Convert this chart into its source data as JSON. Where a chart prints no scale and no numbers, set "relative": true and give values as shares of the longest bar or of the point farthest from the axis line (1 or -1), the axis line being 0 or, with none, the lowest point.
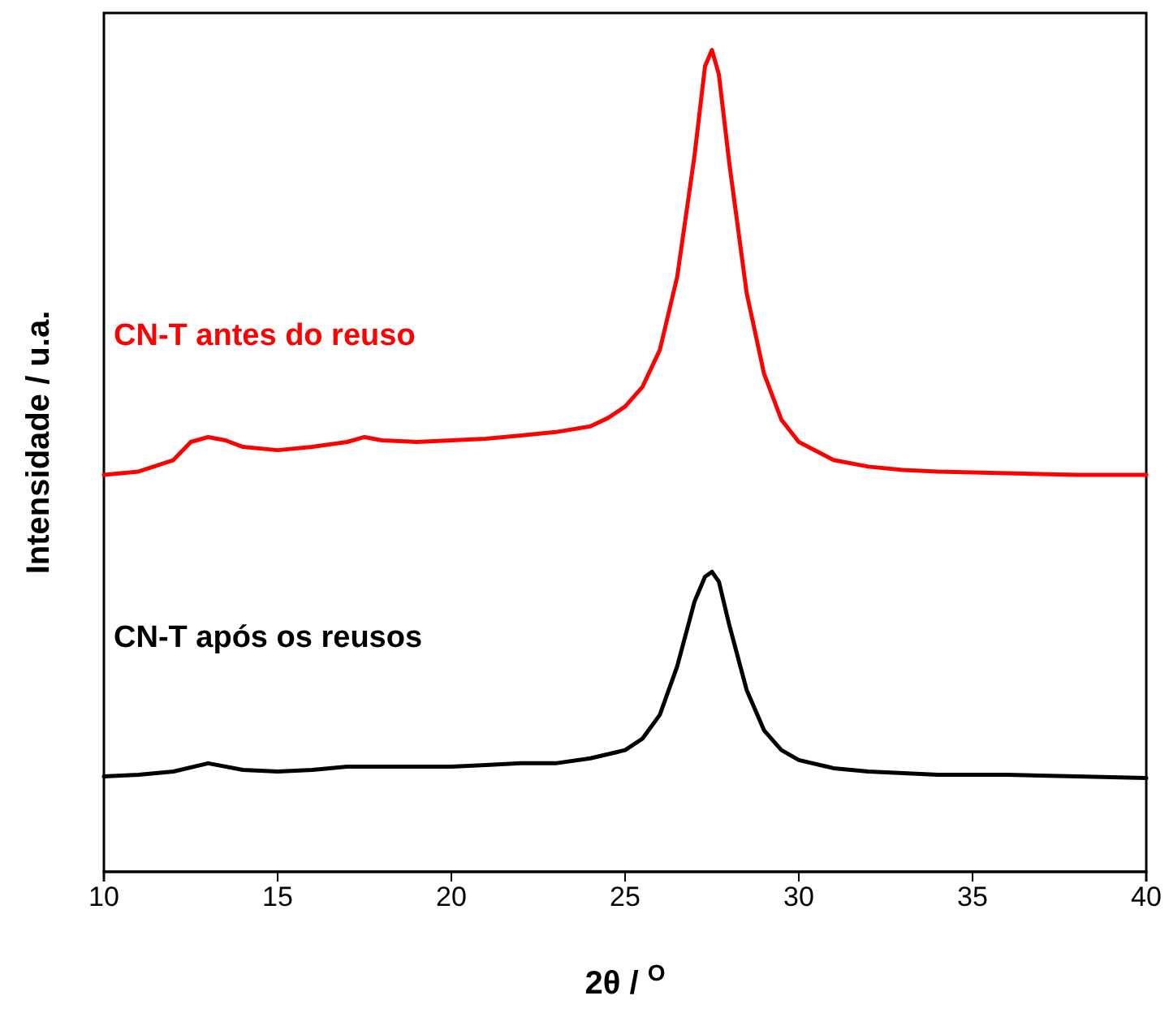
{
  "chart_data": {
    "type": "line",
    "relative": true,
    "xlabel": "2θ / $^{O}$",
    "ylabel": "Intensidade / u.a.",
    "xlim": [
      10,
      40
    ],
    "xticks": [
      10,
      15,
      20,
      25,
      30,
      35,
      40
    ],
    "tick_labels": "x",
    "grid": false,
    "legend": false,
    "marker": "none",
    "line_style": "solid",
    "series": [
      {
        "name": "CN-T antes do reuso",
        "color": "#ff0000",
        "x": [
          10,
          11,
          12,
          12.5,
          13,
          13.5,
          14,
          15,
          16,
          17,
          17.5,
          18,
          19,
          20,
          21,
          22,
          23,
          24,
          24.5,
          25,
          25.5,
          26,
          26.5,
          27,
          27.3,
          27.5,
          27.7,
          28,
          28.5,
          29,
          29.5,
          30,
          31,
          32,
          33,
          34,
          36,
          38,
          40
        ],
        "values": [
          0.483,
          0.487,
          0.501,
          0.523,
          0.529,
          0.525,
          0.517,
          0.513,
          0.517,
          0.523,
          0.529,
          0.525,
          0.523,
          0.525,
          0.527,
          0.531,
          0.535,
          0.542,
          0.552,
          0.566,
          0.59,
          0.635,
          0.724,
          0.872,
          0.98,
          1,
          0.97,
          0.862,
          0.704,
          0.606,
          0.55,
          0.523,
          0.501,
          0.493,
          0.489,
          0.487,
          0.485,
          0.483,
          0.483
        ]
      },
      {
        "name": "CN-T após os reusos",
        "color": "#000000",
        "x": [
          10,
          11,
          12,
          13,
          14,
          15,
          16,
          17,
          18,
          19,
          20,
          21,
          22,
          23,
          24,
          25,
          25.5,
          26,
          26.5,
          27,
          27.3,
          27.5,
          27.7,
          28,
          28.5,
          29,
          29.5,
          30,
          31,
          32,
          34,
          36,
          38,
          40
        ],
        "values": [
          0.116,
          0.118,
          0.122,
          0.132,
          0.124,
          0.122,
          0.124,
          0.128,
          0.128,
          0.128,
          0.128,
          0.13,
          0.132,
          0.132,
          0.138,
          0.148,
          0.162,
          0.191,
          0.25,
          0.329,
          0.359,
          0.365,
          0.353,
          0.3,
          0.221,
          0.172,
          0.148,
          0.136,
          0.126,
          0.122,
          0.118,
          0.118,
          0.116,
          0.114
        ]
      }
    ]
  }
}
